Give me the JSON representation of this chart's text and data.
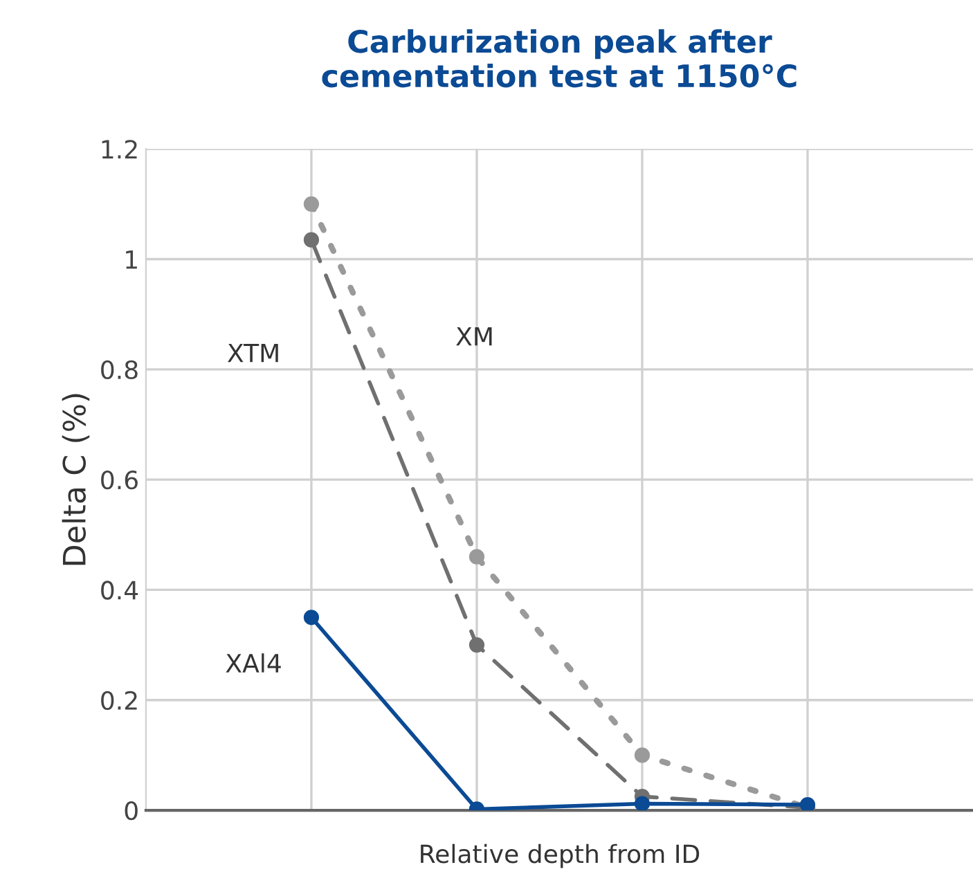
{
  "chart_data": {
    "type": "line",
    "title": "Carburization peak after\ncementation test at 1150°C",
    "xlabel": "Relative depth from ID",
    "ylabel": "Delta C (%)",
    "categories": [
      null,
      null,
      null,
      null
    ],
    "series": [
      {
        "name": "XM",
        "color": "#9a9a9a",
        "line_style": "dotted",
        "values": [
          1.1,
          0.46,
          0.1,
          0.005
        ]
      },
      {
        "name": "XTM",
        "color": "#707070",
        "line_style": "dashed",
        "values": [
          1.035,
          0.3,
          0.025,
          0.005
        ]
      },
      {
        "name": "XAl4",
        "color": "#0b4a94",
        "line_style": "solid",
        "values": [
          0.35,
          0.002,
          0.012,
          0.01
        ]
      }
    ],
    "ylim": [
      0,
      1.2
    ],
    "yticks": [
      0,
      0.2,
      0.4,
      0.6,
      0.8,
      1,
      1.2
    ],
    "grid": true,
    "marker": "circle",
    "legend": false
  }
}
